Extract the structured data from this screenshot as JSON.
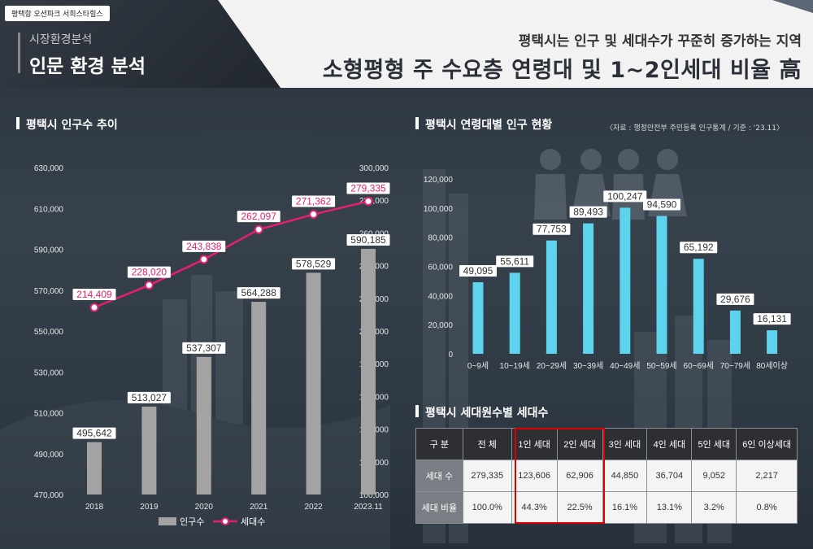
{
  "header": {
    "tag": "평택항 오션파크 서희스타힐스",
    "sub_title": "시장환경분석",
    "main_title": "인문 환경 분석",
    "headline_1": "평택시는 인구 및 세대수가 꾸준히 증가하는 지역",
    "headline_2": "소형평형 주 수요층 연령대 및 1~2인세대 비율 高"
  },
  "sections": {
    "population_title": "평택시 인구수 추이",
    "age_title": "평택시 연령대별 인구 현황",
    "age_source": "〈자료 : 행정안전부 주민등록 인구통계 / 기준 : '23.11〉",
    "household_title": "평택시 세대원수별 세대수"
  },
  "colors": {
    "population_bar": "#a3a3a3",
    "household_line": "#e5206e",
    "age_bar": "#5ed3ee",
    "highlight": "#e00000"
  },
  "chart_data": [
    {
      "type": "bar+line",
      "categories": [
        "2018",
        "2019",
        "2020",
        "2021",
        "2022",
        "2023.11"
      ],
      "series": [
        {
          "name": "인구수",
          "type": "bar",
          "axis": "left",
          "values": [
            495642,
            513027,
            537307,
            564288,
            578529,
            590185
          ],
          "labels": [
            "495,642",
            "513,027",
            "537,307",
            "564,288",
            "578,529",
            "590,185"
          ]
        },
        {
          "name": "세대수",
          "type": "line",
          "axis": "right",
          "values": [
            214409,
            228020,
            243838,
            262097,
            271362,
            279335
          ],
          "labels": [
            "214,409",
            "228,020",
            "243,838",
            "262,097",
            "271,362",
            "279,335"
          ]
        }
      ],
      "left_axis": {
        "ylim": [
          470000,
          630000
        ],
        "ticks": [
          "470,000",
          "490,000",
          "510,000",
          "530,000",
          "550,000",
          "570,000",
          "590,000",
          "610,000",
          "630,000"
        ]
      },
      "right_axis": {
        "ylim": [
          100000,
          300000
        ],
        "ticks": [
          "100,000",
          "120,000",
          "140,000",
          "160,000",
          "180,000",
          "200,000",
          "220,000",
          "240,000",
          "260,000",
          "280,000",
          "300,000"
        ]
      },
      "legend": "bottom"
    },
    {
      "type": "bar",
      "categories": [
        "0~9세",
        "10~19세",
        "20~29세",
        "30~39세",
        "40~49세",
        "50~59세",
        "60~69세",
        "70~79세",
        "80세이상"
      ],
      "values": [
        49095,
        55611,
        77753,
        89493,
        100247,
        94590,
        65192,
        29676,
        16131
      ],
      "labels": [
        "49,095",
        "55,611",
        "77,753",
        "89,493",
        "100,247",
        "94,590",
        "65,192",
        "29,676",
        "16,131"
      ],
      "ylim": [
        0,
        120000
      ],
      "ticks": [
        "0",
        "20,000",
        "40,000",
        "60,000",
        "80,000",
        "100,000",
        "120,000"
      ]
    },
    {
      "type": "table",
      "headers": [
        "구 분",
        "전 체",
        "1인 세대",
        "2인 세대",
        "3인 세대",
        "4인 세대",
        "5인 세대",
        "6인 이상세대"
      ],
      "rows": [
        [
          "세대 수",
          "279,335",
          "123,606",
          "62,906",
          "44,850",
          "36,704",
          "9,052",
          "2,217"
        ],
        [
          "세대 비율",
          "100.0%",
          "44.3%",
          "22.5%",
          "16.1%",
          "13.1%",
          "3.2%",
          "0.8%"
        ]
      ]
    }
  ]
}
